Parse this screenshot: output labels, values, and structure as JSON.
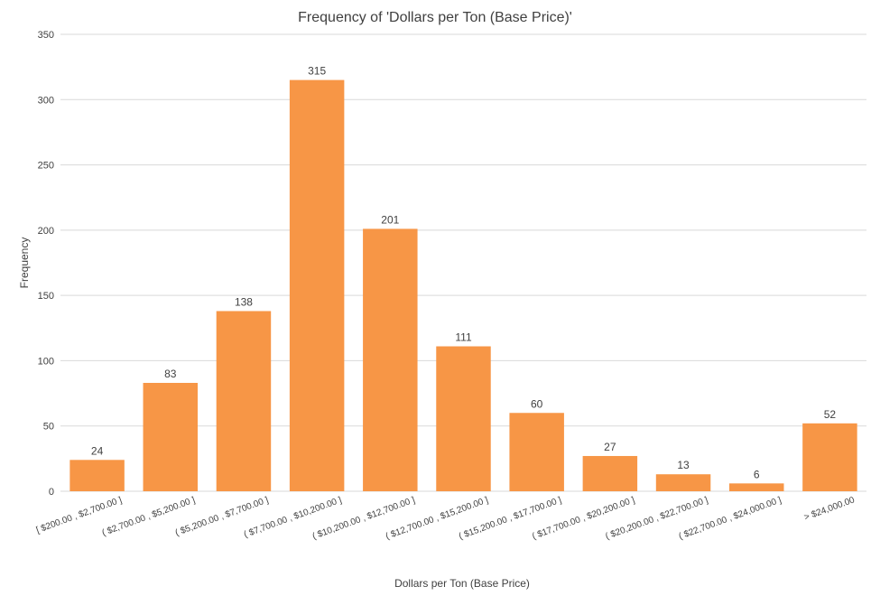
{
  "chart_data": {
    "type": "bar",
    "title": "Frequency of 'Dollars per Ton (Base Price)'",
    "xlabel": "Dollars per Ton (Base Price)",
    "ylabel": "Frequency",
    "ylim": [
      0,
      350
    ],
    "yticks": [
      "0",
      "50",
      "100",
      "150",
      "200",
      "250",
      "300",
      "350"
    ],
    "grid": true,
    "bar_color": "#F79646",
    "categories": [
      "[ $200.00 , $2,700.00 ]",
      "( $2,700.00 , $5,200.00 ]",
      "( $5,200.00 , $7,700.00 ]",
      "( $7,700.00 , $10,200.00 ]",
      "( $10,200.00 , $12,700.00 ]",
      "( $12,700.00 , $15,200.00 ]",
      "( $15,200.00 , $17,700.00 ]",
      "( $17,700.00 , $20,200.00 ]",
      "( $20,200.00 , $22,700.00 ]",
      "( $22,700.00 , $24,000.00 ]",
      "> $24,000.00"
    ],
    "values": [
      24,
      83,
      138,
      315,
      201,
      111,
      60,
      27,
      13,
      6,
      52
    ]
  }
}
